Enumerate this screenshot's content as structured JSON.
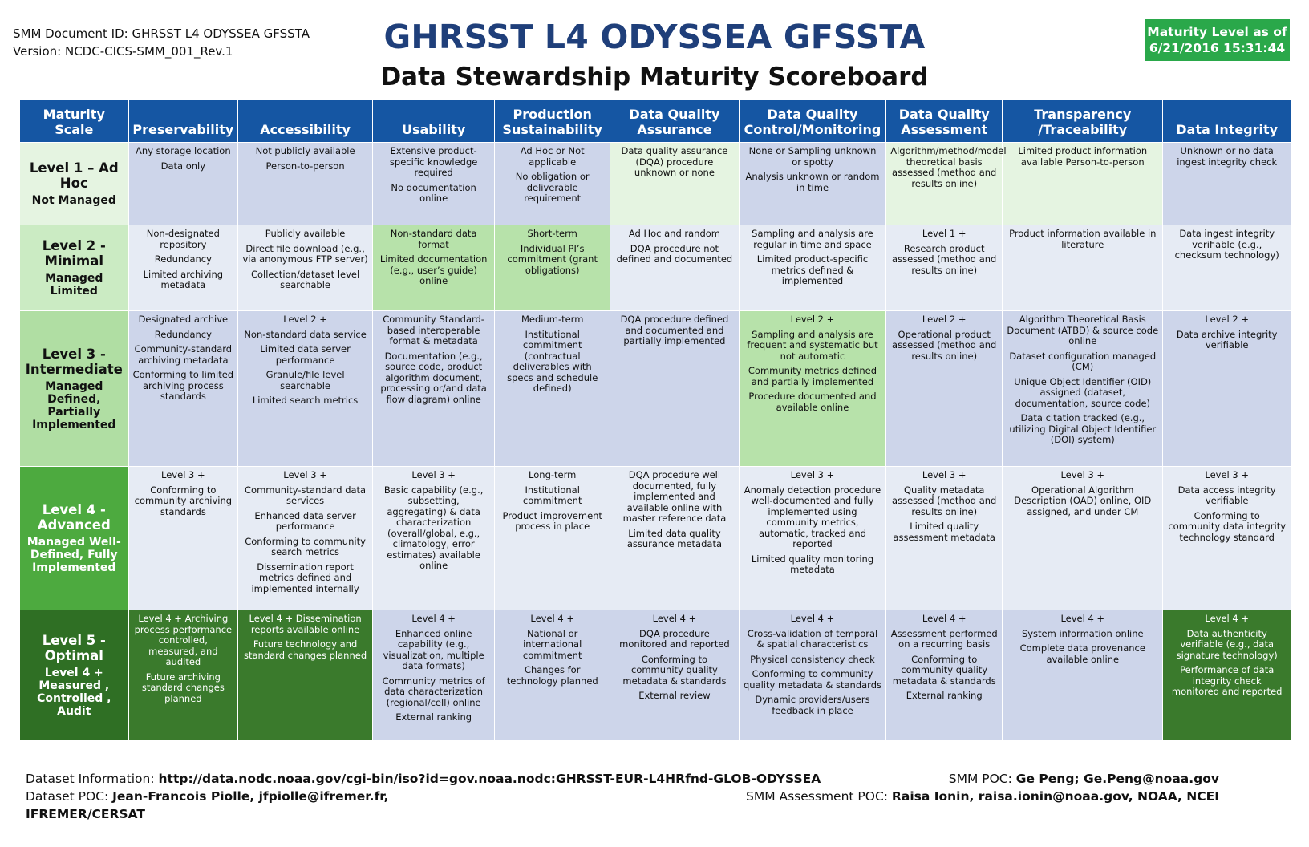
{
  "header": {
    "doc_id": "SMM Document ID: GHRSST L4 ODYSSEA GFSSTA",
    "version": "Version: NCDC-CICS-SMM_001_Rev.1",
    "title": "GHRSST L4 ODYSSEA GFSSTA",
    "subtitle": "Data Stewardship Maturity Scoreboard",
    "maturity_label": "Maturity Level as of",
    "maturity_date": "6/21/2016 15:31:44"
  },
  "columns": [
    "Maturity  Scale",
    "Preservability",
    "Accessibility",
    "Usability",
    "Production Sustainability",
    "Data Quality Assurance",
    "Data Quality Control/Monitoring",
    "Data Quality Assessment",
    "Transparency /Traceability",
    "Data Integrity"
  ],
  "levels": [
    {
      "name": "Level 1 – Ad Hoc",
      "desc": "Not Managed"
    },
    {
      "name": "Level 2 - Minimal",
      "desc": "Managed Limited"
    },
    {
      "name": "Level 3 - Intermediate",
      "desc": "Managed Defined, Partially Implemented"
    },
    {
      "name": "Level 4 - Advanced",
      "desc": "Managed Well-Defined, Fully Implemented"
    },
    {
      "name": "Level 5 - Optimal",
      "desc": "Level 4 + Measured , Controlled , Audit"
    }
  ],
  "cells": [
    [
      [
        "Any storage location",
        "Data only"
      ],
      [
        "Not publicly available",
        "Person-to-person"
      ],
      [
        "Extensive product-specific knowledge required",
        "No documentation online"
      ],
      [
        "Ad Hoc or Not applicable",
        "No obligation or deliverable requirement"
      ],
      [
        "Data quality assurance (DQA) procedure unknown or none"
      ],
      [
        "None or Sampling  unknown or spotty",
        "Analysis unknown or random in time"
      ],
      [
        "Algorithm/method/model theoretical basis assessed (method and results online)"
      ],
      [
        "Limited product information available Person-to-person"
      ],
      [
        "Unknown or no data ingest integrity check"
      ]
    ],
    [
      [
        "Non-designated repository",
        "Redundancy",
        "Limited archiving metadata"
      ],
      [
        "Publicly available",
        "Direct file download (e.g., via anonymous FTP server)",
        "Collection/dataset level searchable"
      ],
      [
        "Non-standard data format",
        "Limited documentation (e.g., user’s guide) online"
      ],
      [
        "Short-term",
        "Individual PI’s commitment (grant obligations)"
      ],
      [
        "Ad Hoc and random",
        "DQA procedure not defined and documented"
      ],
      [
        "Sampling and analysis are regular in time and space",
        "Limited product-specific metrics defined & implemented"
      ],
      [
        "Level 1 +",
        "Research product assessed (method and results online)"
      ],
      [
        "Product information available in literature"
      ],
      [
        "Data ingest integrity verifiable (e.g., checksum technology)"
      ]
    ],
    [
      [
        "Designated archive",
        "Redundancy",
        "Community-standard archiving metadata",
        "Conforming to limited archiving process standards"
      ],
      [
        "Level 2 +",
        "Non-standard data service",
        "Limited data server performance",
        "Granule/file level searchable",
        "Limited search metrics"
      ],
      [
        "Community Standard-based interoperable format & metadata",
        "Documentation (e.g., source code, product algorithm document, processing or/and data flow diagram) online"
      ],
      [
        "Medium-term",
        "Institutional commitment (contractual deliverables with specs and schedule defined)"
      ],
      [
        "DQA procedure defined and documented and partially implemented"
      ],
      [
        "Level 2 +",
        "Sampling and analysis are frequent and systematic but not automatic",
        "Community metrics defined and partially implemented",
        "Procedure documented  and available online"
      ],
      [
        "Level 2 +",
        "Operational product assessed (method and results online)"
      ],
      [
        "Algorithm Theoretical Basis Document (ATBD) & source code online",
        "Dataset configuration managed (CM)",
        "Unique Object Identifier (OID) assigned (dataset, documentation, source code)",
        "Data citation tracked (e.g., utilizing Digital Object Identifier (DOI) system)"
      ],
      [
        "Level 2 +",
        "Data archive integrity verifiable"
      ]
    ],
    [
      [
        "Level 3 +",
        "Conforming to community archiving standards"
      ],
      [
        "Level 3 +",
        "Community-standard data services",
        "Enhanced data server performance",
        "Conforming to community search metrics",
        "Dissemination report metrics defined and implemented internally"
      ],
      [
        "Level 3 +",
        "Basic capability (e.g., subsetting, aggregating) & data characterization (overall/global, e.g., climatology, error estimates) available online"
      ],
      [
        "Long-term",
        "Institutional commitment",
        "Product improvement process in place"
      ],
      [
        "DQA procedure well documented, fully implemented and available online with master reference data",
        "Limited data quality assurance metadata"
      ],
      [
        "Level 3 +",
        "Anomaly detection procedure well-documented and fully implemented using community metrics, automatic, tracked and reported",
        "Limited quality monitoring metadata"
      ],
      [
        "Level 3 +",
        "Quality metadata assessed (method and results online)",
        "Limited quality assessment metadata"
      ],
      [
        "Level 3 +",
        "Operational Algorithm Description (OAD) online, OID assigned, and under CM"
      ],
      [
        "Level 3 +",
        "Data access integrity verifiable",
        "Conforming to community data integrity technology standard"
      ]
    ],
    [
      [
        "Level 4 + Archiving process performance controlled, measured, and audited",
        "Future archiving standard changes planned"
      ],
      [
        "Level  4 + Dissemination reports available online",
        "Future technology and standard changes planned"
      ],
      [
        "Level 4 +",
        "Enhanced online capability (e.g., visualization, multiple data formats)",
        "Community metrics of data characterization (regional/cell)  online",
        "External ranking"
      ],
      [
        "Level 4 +",
        "National or international commitment",
        "Changes for technology planned"
      ],
      [
        "Level 4 +",
        "DQA procedure monitored and reported",
        "Conforming to community quality metadata & standards",
        "External review"
      ],
      [
        "Level 4 +",
        "Cross-validation of temporal & spatial characteristics",
        "Physical consistency check",
        "Conforming to community quality metadata & standards",
        "Dynamic providers/users feedback in place"
      ],
      [
        "Level 4 +",
        "Assessment performed on a recurring basis",
        "Conforming to community quality metadata & standards",
        "External ranking"
      ],
      [
        "Level 4 +",
        "System information online",
        "Complete data provenance available online"
      ],
      [
        "Level 4 +",
        "Data authenticity verifiable (e.g., data signature technology)",
        "Performance of data integrity check monitored and reported"
      ]
    ]
  ],
  "cell_colors": {
    "blue": "#cdd5ea",
    "light_blue": "#e6ebf4",
    "light_green": "#e5f4e1",
    "green": "#b7e2aa",
    "dark_green": "#3a7a2c",
    "header_blue": "#1556a3",
    "badge_green": "#2aa84a"
  },
  "footer": {
    "dataset_info_label": "Dataset Information: ",
    "dataset_info_value": "http://data.nodc.noaa.gov/cgi-bin/iso?id=gov.noaa.nodc:GHRSST-EUR-L4HRfnd-GLOB-ODYSSEA",
    "dataset_poc_label": "Dataset POC: ",
    "dataset_poc_value": "Jean-Francois Piolle, jfpiolle@ifremer.fr,",
    "dataset_poc_value2": "IFREMER/CERSAT",
    "smm_poc_label": "SMM POC: ",
    "smm_poc_value": "Ge Peng; Ge.Peng@noaa.gov",
    "assessment_poc_label": "SMM Assessment POC: ",
    "assessment_poc_value": "Raisa Ionin, raisa.ionin@noaa.gov, NOAA, NCEI"
  }
}
